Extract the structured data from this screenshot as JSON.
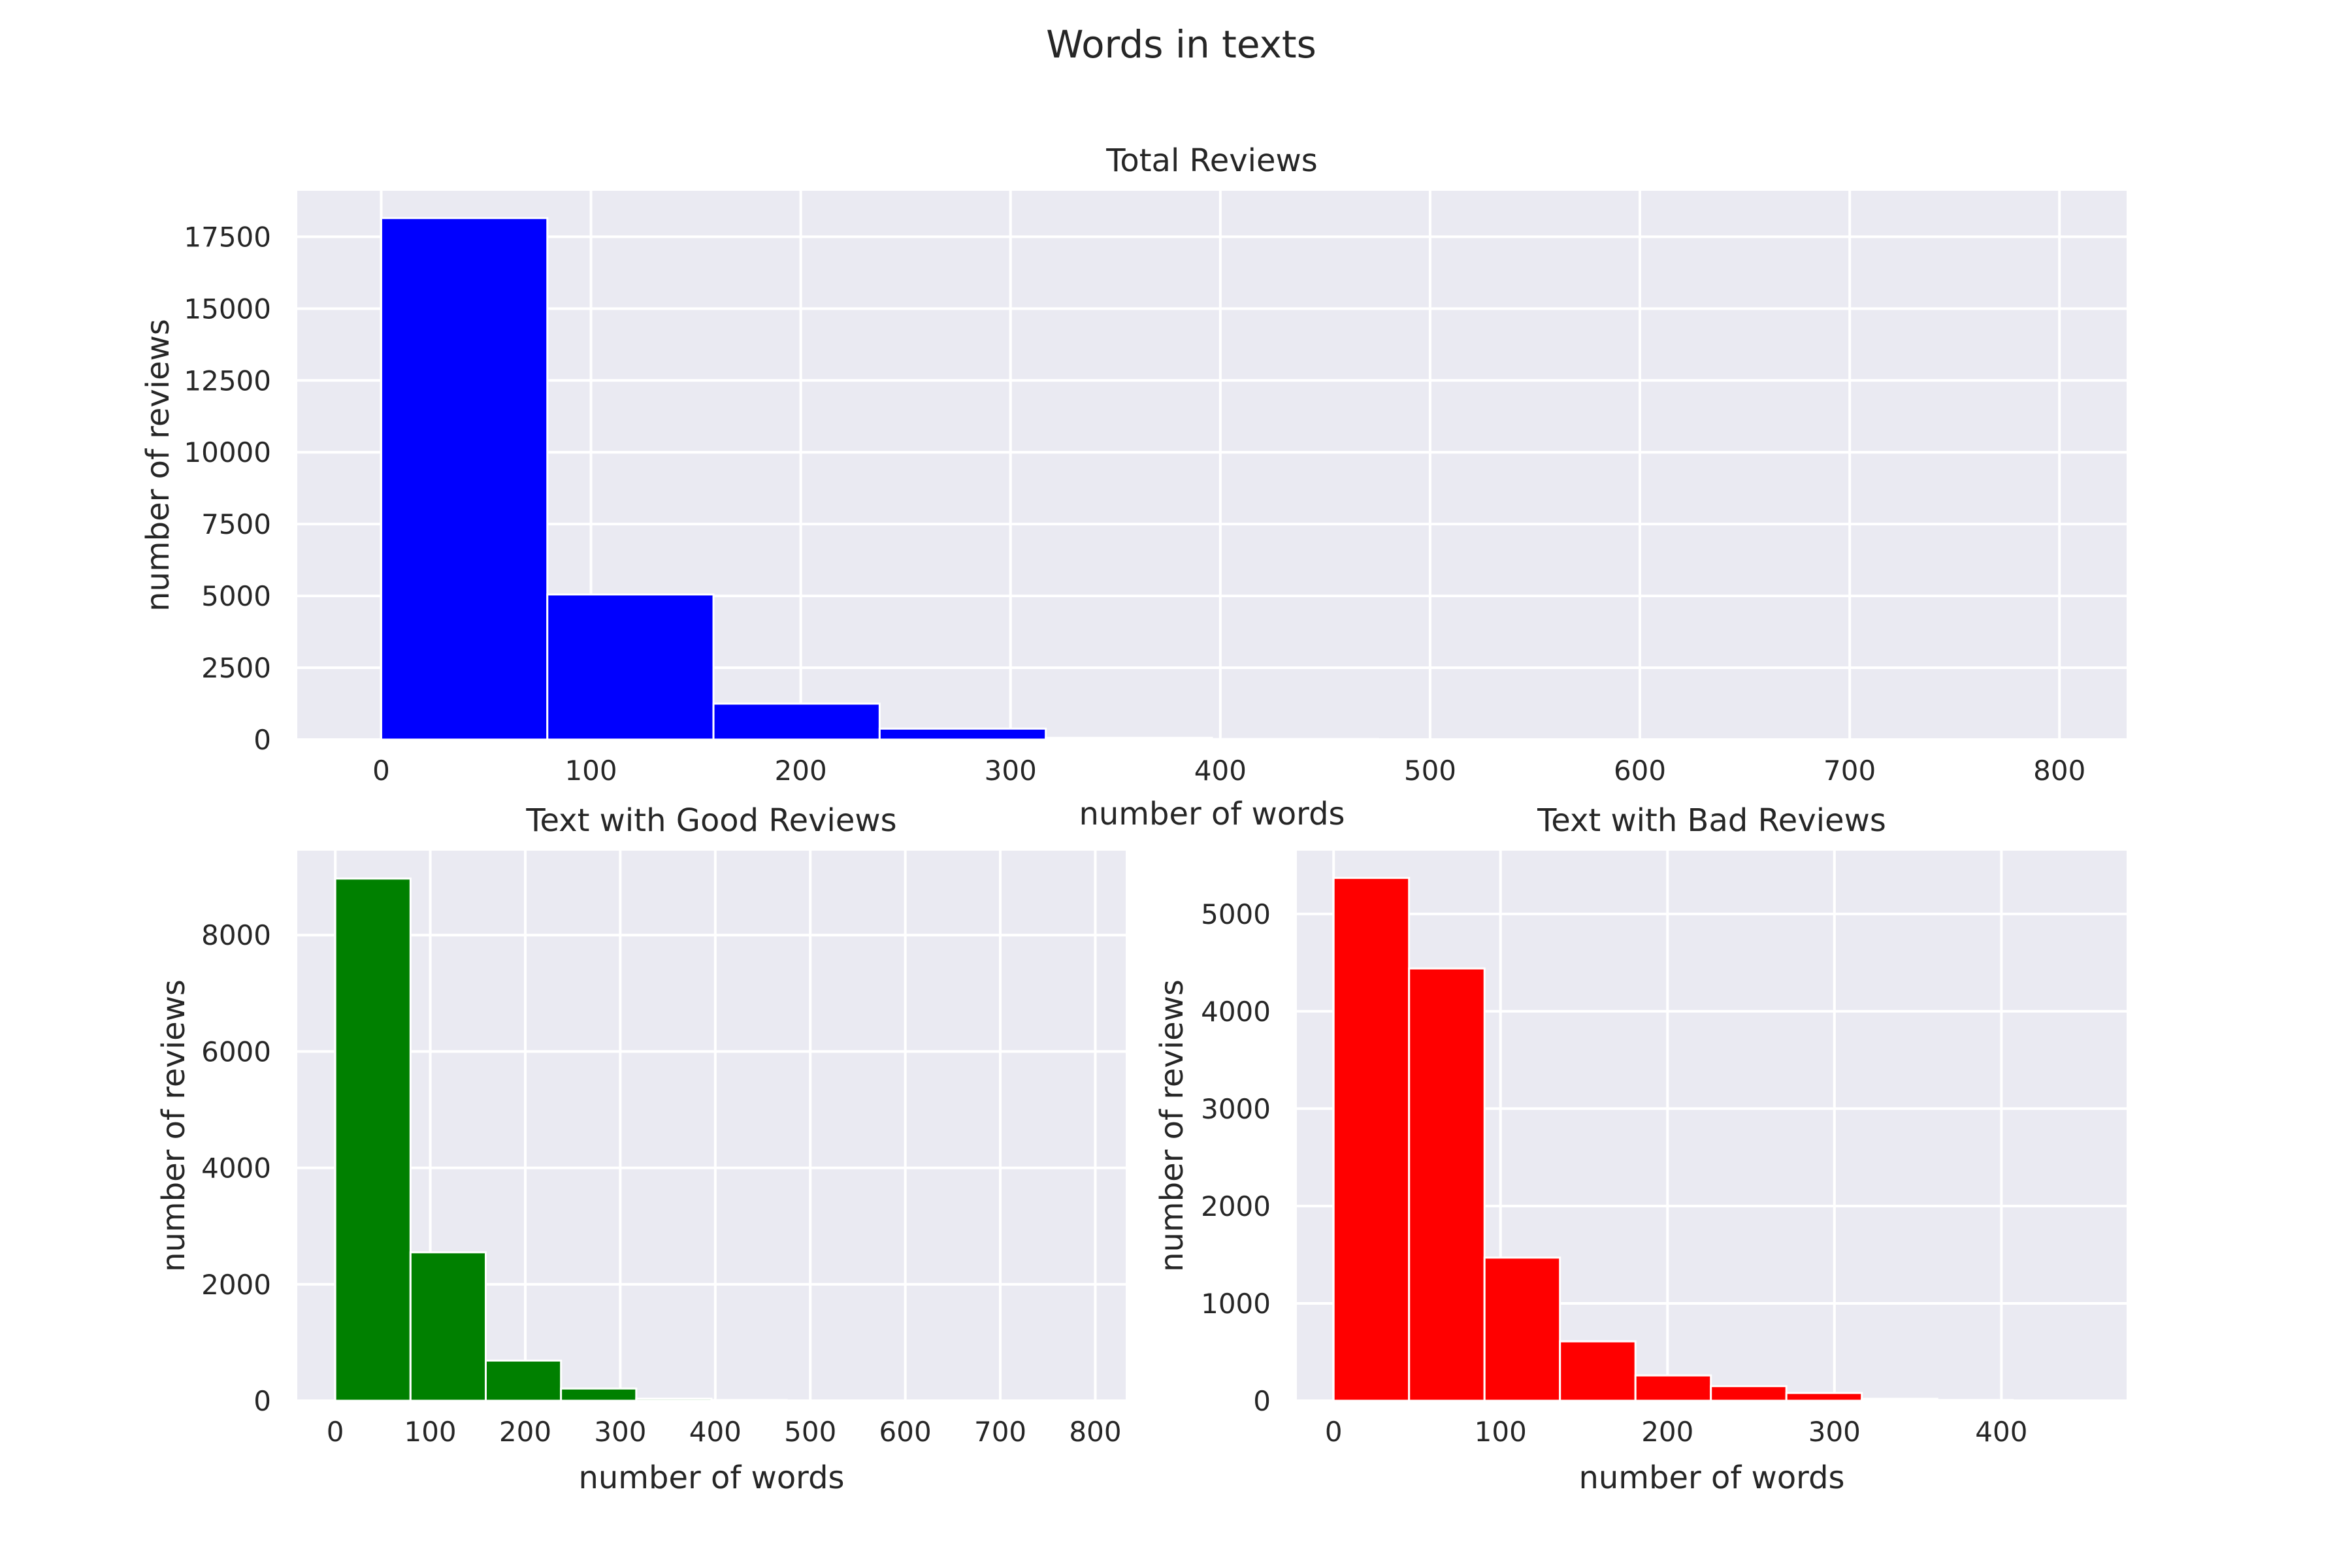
{
  "figure": {
    "title": "Words in texts"
  },
  "chart_data": [
    {
      "type": "bar",
      "title": "Total Reviews",
      "xlabel": "number of words",
      "ylabel": "number of reviews",
      "xlim": [
        -40,
        832
      ],
      "ylim": [
        0,
        19100
      ],
      "xticks": [
        0,
        100,
        200,
        300,
        400,
        500,
        600,
        700,
        800
      ],
      "yticks": [
        0,
        2500,
        5000,
        7500,
        10000,
        12500,
        15000,
        17500
      ],
      "bin_edges": [
        0,
        79.2,
        158.4,
        237.6,
        316.8,
        396,
        475.2,
        554.4,
        633.6,
        712.8,
        792
      ],
      "counts": [
        18150,
        5050,
        1250,
        380,
        60,
        20,
        8,
        4,
        2,
        1
      ],
      "color": "#0000ff"
    },
    {
      "type": "bar",
      "title": "Text with Good Reviews",
      "xlabel": "number of words",
      "ylabel": "number of reviews",
      "xlim": [
        -40,
        832
      ],
      "ylim": [
        0,
        9450
      ],
      "xticks": [
        0,
        100,
        200,
        300,
        400,
        500,
        600,
        700,
        800
      ],
      "yticks": [
        0,
        2000,
        4000,
        6000,
        8000
      ],
      "bin_edges": [
        0,
        79.2,
        158.4,
        237.6,
        316.8,
        396,
        475.2,
        554.4,
        633.6,
        712.8,
        792
      ],
      "counts": [
        8970,
        2550,
        690,
        210,
        35,
        12,
        5,
        3,
        2,
        1
      ],
      "color": "#008000"
    },
    {
      "type": "bar",
      "title": "Text with Bad Reviews",
      "xlabel": "number of words",
      "ylabel": "number of reviews",
      "xlim": [
        -22,
        475
      ],
      "ylim": [
        0,
        5650
      ],
      "xticks": [
        0,
        100,
        200,
        300,
        400
      ],
      "yticks": [
        0,
        1000,
        2000,
        3000,
        4000,
        5000
      ],
      "bin_edges": [
        0,
        45.2,
        90.4,
        135.6,
        180.8,
        226,
        271.2,
        316.4,
        361.6,
        406.8,
        452
      ],
      "counts": [
        5370,
        4440,
        1470,
        610,
        260,
        150,
        80,
        20,
        8,
        3
      ],
      "color": "#ff0000"
    }
  ]
}
